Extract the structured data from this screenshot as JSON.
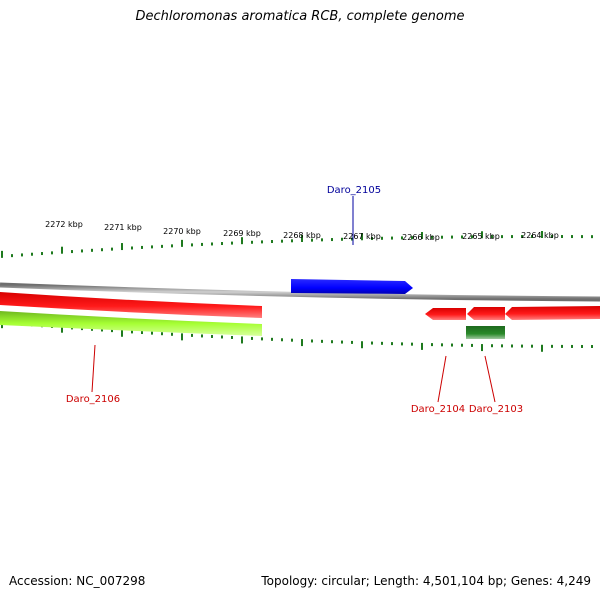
{
  "title": "Dechloromonas aromatica RCB, complete genome",
  "footer": {
    "accession": "Accession: NC_007298",
    "summary": "Topology: circular; Length: 4,501,104 bp; Genes: 4,249"
  },
  "scale": {
    "tick_labels": [
      "2272 kbp",
      "2271 kbp",
      "2270 kbp",
      "2269 kbp",
      "2268 kbp",
      "2267 kbp",
      "2266 kbp",
      "2265 kbp",
      "2264 kbp"
    ],
    "tick_color": "#1e7a1e"
  },
  "genes": [
    {
      "id": "daro-2105",
      "label": "Daro_2105",
      "strand": "forward",
      "color": "#0000ff",
      "label_color": "#00009a"
    },
    {
      "id": "daro-2106",
      "label": "Daro_2106",
      "strand": "reverse",
      "color": "#ff0000",
      "label_color": "#cc0000"
    },
    {
      "id": "daro-2106-rna",
      "label": "",
      "strand": "reverse",
      "color": "#a6ff33",
      "label_color": ""
    },
    {
      "id": "daro-2104",
      "label": "Daro_2104",
      "strand": "reverse",
      "color": "#ff0000",
      "label_color": "#cc0000"
    },
    {
      "id": "daro-2103",
      "label": "Daro_2103",
      "strand": "reverse",
      "color": "#ff0000",
      "label_color": "#cc0000"
    },
    {
      "id": "daro-2103-rna",
      "label": "",
      "strand": "reverse",
      "color": "#1e7a1e",
      "label_color": ""
    },
    {
      "id": "unlabeled-right",
      "label": "",
      "strand": "reverse",
      "color": "#ff0000",
      "label_color": ""
    }
  ],
  "backbone_color": "#888888"
}
